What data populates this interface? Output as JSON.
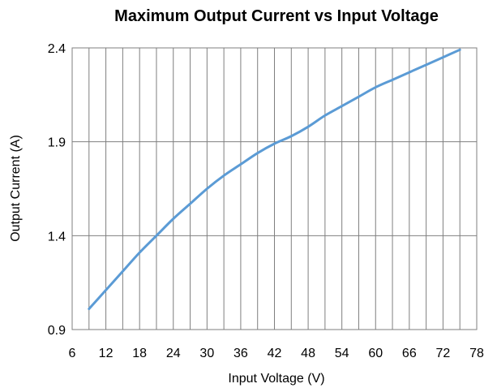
{
  "chart_data": {
    "type": "line",
    "title": "Maximum Output Current vs Input Voltage",
    "xlabel": "Input Voltage  (V)",
    "ylabel": "Output Current (A)",
    "xlim": [
      6,
      78
    ],
    "ylim": [
      0.9,
      2.4
    ],
    "x_ticks": [
      "6",
      "12",
      "18",
      "24",
      "30",
      "36",
      "42",
      "48",
      "54",
      "60",
      "66",
      "72",
      "78"
    ],
    "y_ticks": [
      "0.9",
      "1.4",
      "1.9",
      "2.4"
    ],
    "x_gridlines_at": [
      9,
      12,
      15,
      18,
      21,
      24,
      27,
      30,
      33,
      36,
      39,
      42,
      45,
      48,
      51,
      54,
      57,
      60,
      63,
      66,
      69,
      72,
      75
    ],
    "y_gridlines_at": [
      1.4,
      1.9
    ],
    "grid": true,
    "series": [
      {
        "color": "#5b9bd5",
        "x": [
          9,
          12,
          15,
          18,
          21,
          24,
          27,
          30,
          33,
          36,
          39,
          42,
          45,
          48,
          51,
          54,
          57,
          60,
          63,
          66,
          69,
          72,
          75
        ],
        "y": [
          1.01,
          1.11,
          1.21,
          1.31,
          1.4,
          1.49,
          1.57,
          1.65,
          1.72,
          1.78,
          1.84,
          1.89,
          1.93,
          1.98,
          2.04,
          2.09,
          2.14,
          2.19,
          2.23,
          2.27,
          2.31,
          2.35,
          2.39
        ]
      }
    ]
  }
}
